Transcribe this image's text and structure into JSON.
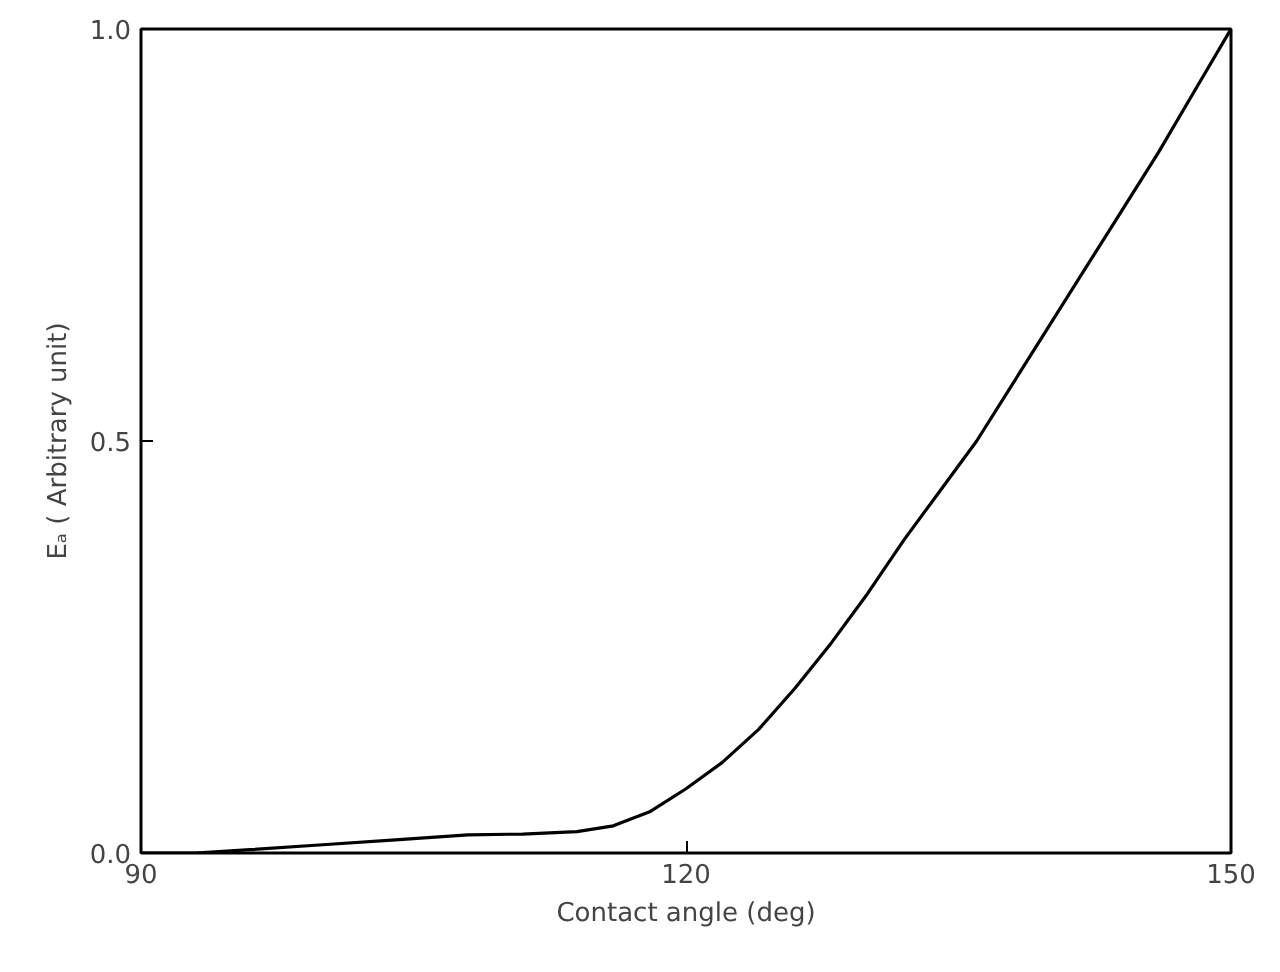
{
  "chart_data": {
    "type": "line",
    "xlabel": "Contact angle (deg)",
    "ylabel": "Eₐ ( Arbitrary unit)",
    "x": [
      90,
      93,
      96,
      100,
      104,
      108,
      111,
      114,
      116,
      118,
      120,
      122,
      124,
      126,
      128,
      130,
      132,
      134,
      136,
      138,
      140,
      142,
      144,
      146,
      148,
      150
    ],
    "series": [
      {
        "color": "#000000",
        "values": [
          0,
          0.0,
          0.004,
          0.01,
          0.016,
          0.022,
          0.023,
          0.026,
          0.033,
          0.05,
          0.078,
          0.11,
          0.15,
          0.2,
          0.255,
          0.315,
          0.38,
          0.44,
          0.5,
          0.57,
          0.64,
          0.71,
          0.78,
          0.85,
          0.925,
          1.0
        ]
      }
    ],
    "xlim": [
      90,
      150
    ],
    "ylim": [
      0,
      1.0
    ],
    "xticks": [
      90,
      120,
      150
    ],
    "yticks": [
      {
        "value": 0,
        "label": "0.0"
      },
      {
        "value": 0.5,
        "label": "0.5"
      },
      {
        "value": 1.0,
        "label": "1.0"
      }
    ],
    "grid": false,
    "marker": "none",
    "line_style": "solid"
  }
}
